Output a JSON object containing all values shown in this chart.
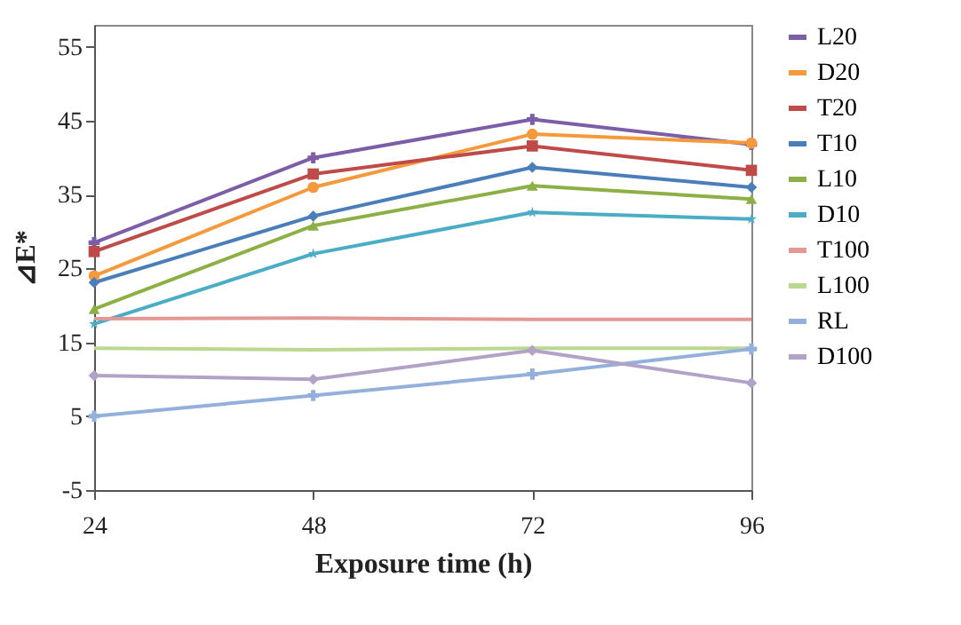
{
  "chart_data": {
    "type": "line",
    "xlabel": "Exposure time (h)",
    "ylabel": "⊿E*",
    "x": [
      24,
      48,
      72,
      96
    ],
    "xlim": [
      24,
      96
    ],
    "xticks": [
      24,
      48,
      72,
      96
    ],
    "ylim": [
      -5,
      58
    ],
    "yticks": [
      -5,
      5,
      15,
      25,
      35,
      45,
      55
    ],
    "grid": false,
    "legend": "right",
    "line_style": "solid",
    "series": [
      {
        "name": "L20",
        "color": "#7b5ea7",
        "marker": "cross",
        "values": [
          28.5,
          40,
          45.2,
          41.8
        ]
      },
      {
        "name": "D20",
        "color": "#f59a3c",
        "marker": "circle",
        "values": [
          24,
          36,
          43.2,
          42
        ]
      },
      {
        "name": "T20",
        "color": "#be4b48",
        "marker": "square",
        "values": [
          27.3,
          37.8,
          41.6,
          38.3
        ]
      },
      {
        "name": "T10",
        "color": "#4a7ebb",
        "marker": "diamond",
        "values": [
          23.1,
          32.1,
          38.7,
          36
        ]
      },
      {
        "name": "L10",
        "color": "#8db046",
        "marker": "triangle",
        "values": [
          19.5,
          30.8,
          36.2,
          34.4
        ]
      },
      {
        "name": "D10",
        "color": "#4bacc6",
        "marker": "star",
        "values": [
          17.5,
          27,
          32.6,
          31.7
        ]
      },
      {
        "name": "T100",
        "color": "#e39896",
        "marker": "none",
        "values": [
          18.2,
          18.3,
          18.1,
          18.1
        ]
      },
      {
        "name": "L100",
        "color": "#b8d98f",
        "marker": "none",
        "values": [
          14.2,
          14,
          14.2,
          14.2
        ]
      },
      {
        "name": "RL",
        "color": "#93b0dc",
        "marker": "cross",
        "values": [
          5,
          7.8,
          10.7,
          14.1
        ]
      },
      {
        "name": "D100",
        "color": "#b3a2c7",
        "marker": "diamond",
        "values": [
          10.5,
          10,
          13.9,
          9.5
        ]
      }
    ]
  }
}
